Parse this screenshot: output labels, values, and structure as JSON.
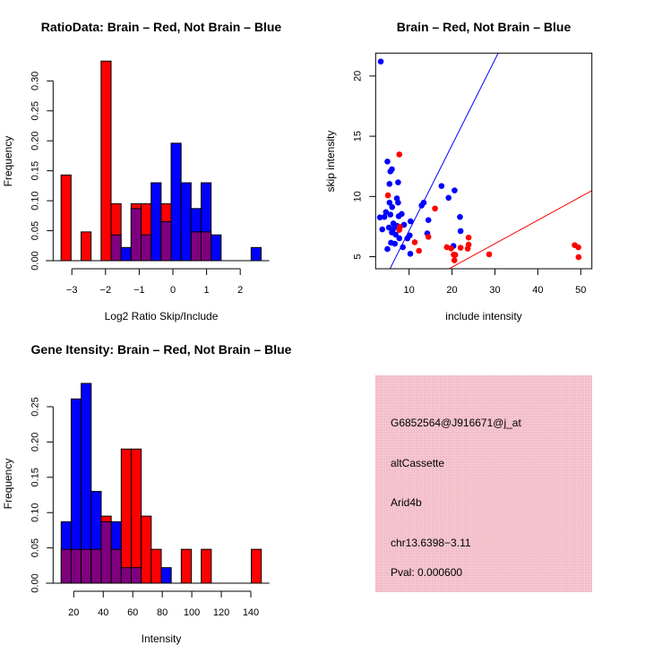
{
  "colors": {
    "red": "#ff0000",
    "blue": "#0000ff",
    "purple": "#7f007f",
    "box": "#f3c1cd",
    "pval": "#8b0000"
  },
  "chart_data": [
    {
      "type": "bar",
      "id": "ratio",
      "title": "RatioData: Brain – Red, Not Brain – Blue",
      "xlabel": "Log2 Ratio Skip/Include",
      "ylabel": "Frequency",
      "bin_start": -3.32,
      "bin_width": 0.297,
      "series": [
        {
          "name": "Brain",
          "color": "red",
          "values": [
            0.143,
            0,
            0.048,
            0,
            0.333,
            0.095,
            0,
            0.095,
            0.095,
            0,
            0.095,
            0,
            0,
            0.048,
            0.048,
            0,
            0,
            0,
            0,
            0
          ]
        },
        {
          "name": "Not Brain",
          "color": "blue",
          "values": [
            0,
            0,
            0,
            0,
            0,
            0.043,
            0.022,
            0.087,
            0.043,
            0.13,
            0.065,
            0.196,
            0.13,
            0.087,
            0.13,
            0.043,
            0,
            0,
            0,
            0.022
          ]
        }
      ],
      "xticks": [
        -3,
        -2,
        -1,
        0,
        1,
        2
      ],
      "xtick_labels": [
        "−3",
        "−2",
        "−1",
        "0",
        "1",
        "2"
      ],
      "yticks": [
        0,
        0.05,
        0.1,
        0.15,
        0.2,
        0.25,
        0.3
      ],
      "ytick_labels": [
        "0.00",
        "0.05",
        "0.10",
        "0.15",
        "0.20",
        "0.25",
        "0.30"
      ]
    },
    {
      "type": "scatter",
      "id": "scatter",
      "title": "Brain – Red, Not Brain – Blue",
      "xlabel": "include intensity",
      "ylabel": "skip intensity",
      "xlim": [
        2.2,
        52.6
      ],
      "ylim": [
        4.0,
        21.9
      ],
      "xticks": [
        10,
        20,
        30,
        40,
        50
      ],
      "xtick_labels": [
        "10",
        "20",
        "30",
        "40",
        "50"
      ],
      "yticks": [
        5,
        10,
        15,
        20
      ],
      "ytick_labels": [
        "5",
        "10",
        "15",
        "20"
      ],
      "series": [
        {
          "name": "Not Brain",
          "color": "blue",
          "points": [
            [
              3.4,
              21.2
            ],
            [
              4.95,
              12.9
            ],
            [
              6.0,
              12.26
            ],
            [
              5.64,
              12.08
            ],
            [
              5.44,
              11.04
            ],
            [
              7.44,
              11.17
            ],
            [
              7.16,
              9.84
            ],
            [
              7.44,
              9.49
            ],
            [
              5.44,
              9.49
            ],
            [
              6.05,
              9.12
            ],
            [
              4.6,
              8.7
            ],
            [
              5.64,
              8.5
            ],
            [
              3.2,
              8.26
            ],
            [
              4.25,
              8.3
            ],
            [
              7.58,
              8.36
            ],
            [
              8.27,
              8.55
            ],
            [
              3.75,
              7.27
            ],
            [
              5.3,
              7.42
            ],
            [
              6.33,
              7.76
            ],
            [
              6.68,
              7.47
            ],
            [
              7.16,
              7.57
            ],
            [
              6.19,
              7.22
            ],
            [
              5.98,
              7.02
            ],
            [
              6.88,
              6.83
            ],
            [
              7.72,
              6.53
            ],
            [
              5.78,
              6.16
            ],
            [
              6.68,
              6.08
            ],
            [
              8.83,
              7.65
            ],
            [
              4.95,
              5.64
            ],
            [
              8.55,
              5.79
            ],
            [
              9.6,
              6.52
            ],
            [
              10.14,
              6.77
            ],
            [
              10.35,
              7.94
            ],
            [
              10.28,
              5.24
            ],
            [
              12.92,
              9.25
            ],
            [
              13.4,
              9.49
            ],
            [
              14.5,
              8.04
            ],
            [
              14.24,
              6.93
            ],
            [
              17.56,
              10.87
            ],
            [
              19.2,
              9.89
            ],
            [
              20.6,
              10.5
            ],
            [
              21.86,
              8.3
            ],
            [
              22.0,
              7.13
            ],
            [
              20.33,
              5.89
            ]
          ]
        },
        {
          "name": "Brain",
          "color": "red",
          "points": [
            [
              7.72,
              13.49
            ],
            [
              5.08,
              10.09
            ],
            [
              7.86,
              7.47
            ],
            [
              7.72,
              7.22
            ],
            [
              16.04,
              9.0
            ],
            [
              11.32,
              6.2
            ],
            [
              12.3,
              5.49
            ],
            [
              14.5,
              6.65
            ],
            [
              18.8,
              5.79
            ],
            [
              19.8,
              5.69
            ],
            [
              20.4,
              5.17
            ],
            [
              20.76,
              5.15
            ],
            [
              20.55,
              4.7
            ],
            [
              22.0,
              5.74
            ],
            [
              23.66,
              5.67
            ],
            [
              23.87,
              6.0
            ],
            [
              23.87,
              6.59
            ],
            [
              28.66,
              5.2
            ],
            [
              48.6,
              5.96
            ],
            [
              49.44,
              5.78
            ],
            [
              49.5,
              4.96
            ]
          ]
        }
      ],
      "lines": [
        {
          "color": "blue",
          "intercept": 0.06,
          "slope": 0.71
        },
        {
          "color": "red",
          "intercept": 0.23,
          "slope": 0.195
        }
      ]
    },
    {
      "type": "bar",
      "id": "intensity",
      "title": "Gene Itensity: Brain – Red, Not Brain – Blue",
      "xlabel": "Intensity",
      "ylabel": "Frequency",
      "bin_start": 11.5,
      "bin_width": 6.78,
      "series": [
        {
          "name": "Brain",
          "color": "red",
          "values": [
            0.048,
            0.048,
            0.048,
            0.048,
            0.095,
            0.048,
            0.19,
            0.19,
            0.095,
            0.048,
            0,
            0,
            0.048,
            0,
            0.048,
            0,
            0,
            0,
            0,
            0.048
          ]
        },
        {
          "name": "Not Brain",
          "color": "blue",
          "values": [
            0.087,
            0.261,
            0.283,
            0.13,
            0.087,
            0.087,
            0.022,
            0.022,
            0,
            0,
            0.022,
            0,
            0,
            0,
            0,
            0,
            0,
            0,
            0,
            0
          ]
        }
      ],
      "xticks": [
        20,
        40,
        60,
        80,
        100,
        120,
        140
      ],
      "xtick_labels": [
        "20",
        "40",
        "60",
        "80",
        "100",
        "120",
        "140"
      ],
      "yticks": [
        0,
        0.05,
        0.1,
        0.15,
        0.2,
        0.25
      ],
      "ytick_labels": [
        "0.00",
        "0.05",
        "0.10",
        "0.15",
        "0.20",
        "0.25"
      ]
    }
  ],
  "info": {
    "probe_id": "G6852564@J916671@j_at",
    "event_type": "altCassette",
    "gene": "Arid4b",
    "location": "chr13.6398−3.11",
    "pval": "Pval: 0.000600"
  }
}
